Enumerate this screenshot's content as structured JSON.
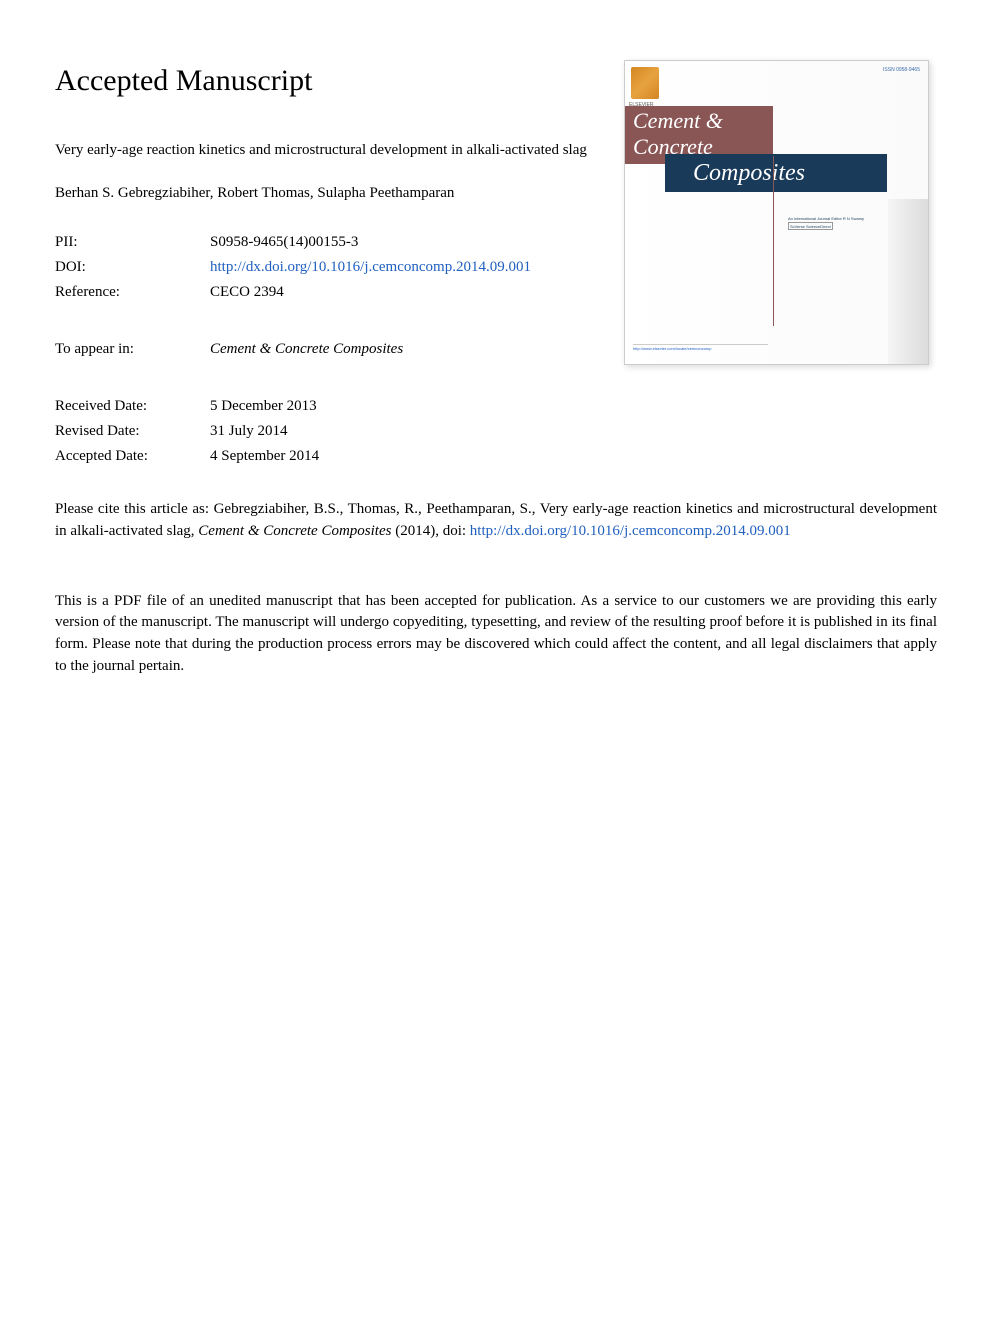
{
  "heading": "Accepted Manuscript",
  "article": {
    "title": "Very early-age reaction kinetics and microstructural development in alkali-activated slag",
    "authors": "Berhan S. Gebregziabiher, Robert Thomas, Sulapha Peethamparan"
  },
  "metadata": {
    "pii_label": "PII:",
    "pii_value": "S0958-9465(14)00155-3",
    "doi_label": "DOI:",
    "doi_value": "http://dx.doi.org/10.1016/j.cemconcomp.2014.09.001",
    "reference_label": "Reference:",
    "reference_value": "CECO 2394",
    "appear_label": "To appear in:",
    "appear_value": "Cement & Concrete Composites",
    "received_label": "Received Date:",
    "received_value": "5 December 2013",
    "revised_label": "Revised Date:",
    "revised_value": "31 July 2014",
    "accepted_label": "Accepted Date:",
    "accepted_value": "4 September 2014"
  },
  "citation": {
    "prefix": "Please cite this article as: Gebregziabiher, B.S., Thomas, R., Peethamparan, S., Very early-age reaction kinetics and microstructural development in alkali-activated slag, ",
    "journal": "Cement & Concrete Composites",
    "year": " (2014), doi: ",
    "doi_link": "http://dx.doi.org/10.1016/j.cemconcomp.2014.09.001"
  },
  "disclaimer": "This is a PDF file of an unedited manuscript that has been accepted for publication. As a service to our customers we are providing this early version of the manuscript. The manuscript will undergo copyediting, typesetting, and review of the resulting proof before it is published in its final form. Please note that during the production process errors may be discovered which could affect the content, and all legal disclaimers that apply to the journal pertain.",
  "cover": {
    "issn": "ISSN 0958-9465",
    "title_line1": "Cement &",
    "title_line2": "Concrete",
    "title_line3": "Composites",
    "editor_text": "An International Journal Editor R N Swamy",
    "sciencedirect": "ScVerse ScienceDirect",
    "url": "http://www.elsevier.com/locate/cemconcomp"
  },
  "colors": {
    "link": "#2060c0",
    "cement_bg": "#8a5555",
    "composites_bg": "#1a3a5a",
    "text": "#000000",
    "background": "#ffffff"
  }
}
